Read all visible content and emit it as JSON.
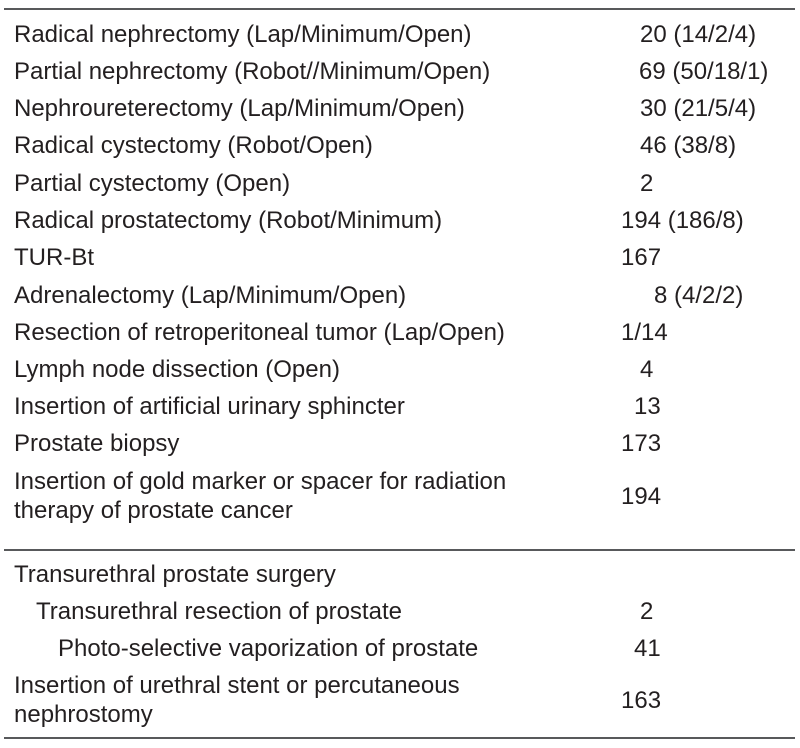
{
  "table": {
    "section1": [
      {
        "label": "Radical nephrectomy (Lap/Minimum/Open)",
        "value": "20 (14/2/4)"
      },
      {
        "label": "Partial nephrectomy (Robot//Minimum/Open)",
        "value": "69 (50/18/1)"
      },
      {
        "label": "Nephroureterectomy (Lap/Minimum/Open)",
        "value": "30 (21/5/4)"
      },
      {
        "label": "Radical cystectomy (Robot/Open)",
        "value": "46 (38/8)"
      },
      {
        "label": "Partial cystectomy (Open)",
        "value": "2"
      },
      {
        "label": "Radical prostatectomy (Robot/Minimum)",
        "value": "194 (186/8)"
      },
      {
        "label": "TUR-Bt",
        "value": "167"
      },
      {
        "label": "Adrenalectomy (Lap/Minimum/Open)",
        "value": "8 (4/2/2)"
      },
      {
        "label": "Resection of retroperitoneal tumor (Lap/Open)",
        "value": "1/14"
      },
      {
        "label": "Lymph node dissection (Open)",
        "value": "4"
      },
      {
        "label": "Insertion of artificial urinary sphincter",
        "value": "13"
      },
      {
        "label": "Prostate biopsy",
        "value": "173"
      },
      {
        "label_line1": "Insertion of gold marker or spacer for radiation",
        "label_line2": "therapy of prostate cancer",
        "value": "194"
      }
    ],
    "section2": [
      {
        "label": "Transurethral prostate surgery",
        "value": ""
      },
      {
        "label": "Transurethral resection of prostate",
        "value": "2"
      },
      {
        "label": "Photo-selective vaporization of prostate",
        "value": "41"
      },
      {
        "label_line1": "Insertion of urethral stent or percutaneous",
        "label_line2": "nephrostomy",
        "value": "163"
      }
    ]
  }
}
